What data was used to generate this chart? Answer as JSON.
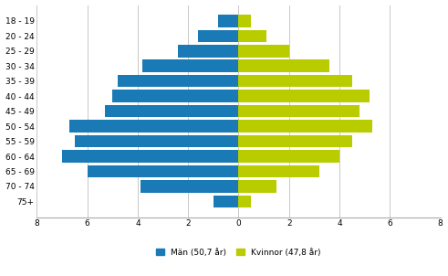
{
  "age_groups": [
    "18 - 19",
    "20 - 24",
    "25 - 29",
    "30 - 34",
    "35 - 39",
    "40 - 44",
    "45 - 49",
    "50 - 54",
    "55 - 59",
    "60 - 64",
    "65 - 69",
    "70 - 74",
    "75+"
  ],
  "men": [
    0.8,
    1.6,
    2.4,
    3.8,
    4.8,
    5.0,
    5.3,
    6.7,
    6.5,
    7.0,
    6.0,
    3.9,
    1.0
  ],
  "women": [
    0.5,
    1.1,
    2.0,
    3.6,
    4.5,
    5.2,
    4.8,
    5.3,
    4.5,
    4.0,
    3.2,
    1.5,
    0.5
  ],
  "men_color": "#1a7ab5",
  "women_color": "#b8cc00",
  "men_label": "Män (50,7 år)",
  "women_label": "Kvinnor (47,8 år)",
  "xlim": 8,
  "background_color": "#ffffff",
  "grid_color": "#c8c8c8"
}
